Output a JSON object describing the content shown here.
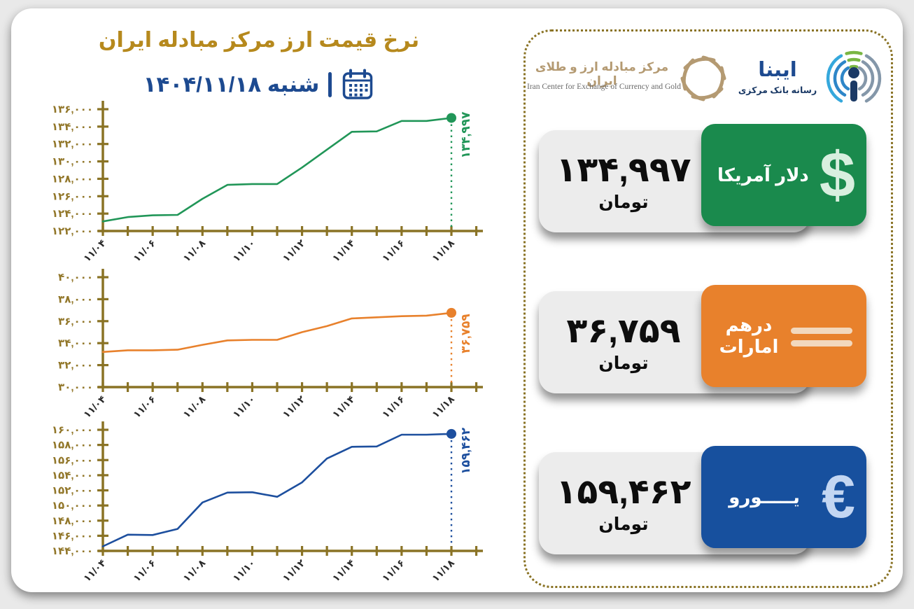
{
  "header": {
    "title": "نرخ قیمت ارز مرکز مبادله ایران",
    "weekday_date": "شنبه ۱۴۰۴/۱۱/۱۸"
  },
  "logos": {
    "exchange_center": {
      "name_fa": "مرکز مبادله ارز و طلای ایران",
      "caption_en": "Iran Center for Exchange of Currency and Gold"
    },
    "ibena": {
      "name_fa": "ایبنا",
      "subtitle_fa": "رسانه بانک مرکزی"
    }
  },
  "cards": [
    {
      "currency_fa": "دلار آمریکا",
      "symbol": "$",
      "value_fa": "۱۳۴,۹۹۷",
      "unit_fa": "تومان",
      "color": "#1a8a4d"
    },
    {
      "currency_fa": "درهم امارات",
      "symbol": "Ð",
      "value_fa": "۳۶,۷۵۹",
      "unit_fa": "تومان",
      "color": "#e8812c"
    },
    {
      "currency_fa": "یـــــورو",
      "symbol": "€",
      "value_fa": "۱۵۹,۴۶۲",
      "unit_fa": "تومان",
      "color": "#17509e"
    }
  ],
  "chart_data": [
    {
      "type": "line",
      "name": "دلار آمریکا",
      "color": "#219658",
      "x": [
        "11/04",
        "11/05",
        "11/06",
        "11/07",
        "11/08",
        "11/09",
        "11/10",
        "11/11",
        "11/12",
        "11/13",
        "11/14",
        "11/15",
        "11/16",
        "11/17",
        "11/18"
      ],
      "x_tick_labels_fa": [
        "۱۱/۰۴",
        "۱۱/۰۶",
        "۱۱/۰۸",
        "۱۱/۱۰",
        "۱۱/۱۲",
        "۱۱/۱۴",
        "۱۱/۱۶",
        "۱۱/۱۸"
      ],
      "values": [
        123100,
        123600,
        123800,
        123850,
        125700,
        127300,
        127400,
        127400,
        129300,
        131350,
        133400,
        133450,
        134650,
        134650,
        134997
      ],
      "ylim": [
        122000,
        136000
      ],
      "ytick_step": 2000,
      "grid": false,
      "end_value": 134997,
      "end_label_fa": "۱۳۴,۹۹۷"
    },
    {
      "type": "line",
      "name": "درهم امارات",
      "color": "#e8812c",
      "x": [
        "11/04",
        "11/05",
        "11/06",
        "11/07",
        "11/08",
        "11/09",
        "11/10",
        "11/11",
        "11/12",
        "11/13",
        "11/14",
        "11/15",
        "11/16",
        "11/17",
        "11/18"
      ],
      "x_tick_labels_fa": [
        "۱۱/۰۴",
        "۱۱/۰۶",
        "۱۱/۰۸",
        "۱۱/۱۰",
        "۱۱/۱۲",
        "۱۱/۱۴",
        "۱۱/۱۶",
        "۱۱/۱۸"
      ],
      "values": [
        33200,
        33350,
        33350,
        33400,
        33850,
        34250,
        34300,
        34300,
        35000,
        35550,
        36250,
        36350,
        36450,
        36500,
        36759
      ],
      "ylim": [
        30000,
        40000
      ],
      "ytick_step": 2000,
      "grid": false,
      "end_value": 36759,
      "end_label_fa": "۳۶,۷۵۹"
    },
    {
      "type": "line",
      "name": "یورو",
      "color": "#1d4f9e",
      "x": [
        "11/04",
        "11/05",
        "11/06",
        "11/07",
        "11/08",
        "11/09",
        "11/10",
        "11/11",
        "11/12",
        "11/13",
        "11/14",
        "11/15",
        "11/16",
        "11/17",
        "11/18"
      ],
      "x_tick_labels_fa": [
        "۱۱/۰۴",
        "۱۱/۰۶",
        "۱۱/۰۸",
        "۱۱/۱۰",
        "۱۱/۱۲",
        "۱۱/۱۴",
        "۱۱/۱۶",
        "۱۱/۱۸"
      ],
      "values": [
        144600,
        146150,
        146100,
        146900,
        150400,
        151700,
        151750,
        151150,
        153050,
        156200,
        157750,
        157800,
        159350,
        159350,
        159462
      ],
      "ylim": [
        144000,
        160000
      ],
      "ytick_step": 2000,
      "grid": false,
      "end_value": 159462,
      "end_label_fa": "۱۵۹,۴۶۲"
    }
  ],
  "colors": {
    "axis": "#8a7325",
    "y_tick_label": "#92772a",
    "x_tick_label": "#2a2a2a",
    "title_gold": "#b6891d",
    "date_blue": "#1d4a90"
  }
}
